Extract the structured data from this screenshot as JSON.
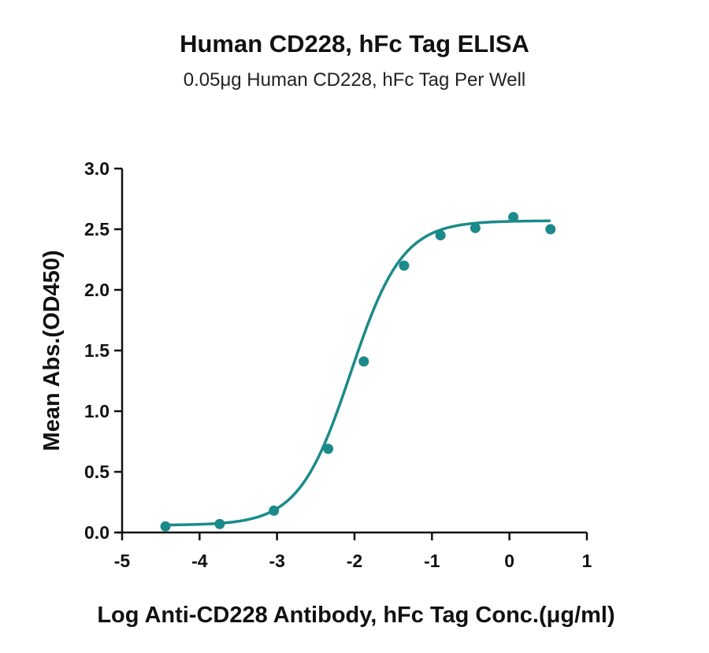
{
  "chart_data": {
    "type": "scatter",
    "title": "Human CD228, hFc Tag ELISA",
    "subtitle": "0.05μg Human CD228, hFc Tag Per Well",
    "xlabel": "Log Anti-CD228 Antibody, hFc Tag Conc.(μg/ml)",
    "ylabel": "Mean Abs.(OD450)",
    "xlim": [
      -5,
      1
    ],
    "ylim": [
      0,
      3.0
    ],
    "xticks": [
      "-5",
      "-4",
      "-3",
      "-2",
      "-1",
      "0",
      "1"
    ],
    "yticks": [
      "0.0",
      "0.5",
      "1.0",
      "1.5",
      "2.0",
      "2.5",
      "3.0"
    ],
    "grid": false,
    "color": "#1a8a8a",
    "series": [
      {
        "x": [
          -4.44,
          -3.74,
          -3.04,
          -2.34,
          -1.88,
          -1.36,
          -0.89,
          -0.44,
          0.05,
          0.53
        ],
        "y": [
          0.05,
          0.07,
          0.18,
          0.69,
          1.41,
          2.2,
          2.45,
          2.51,
          2.6,
          2.5
        ]
      }
    ],
    "fit": {
      "bottom": 0.06,
      "top": 2.57,
      "logEC50": -2.05,
      "hillslope": 1.3,
      "x_range": [
        -4.44,
        0.53
      ]
    }
  }
}
